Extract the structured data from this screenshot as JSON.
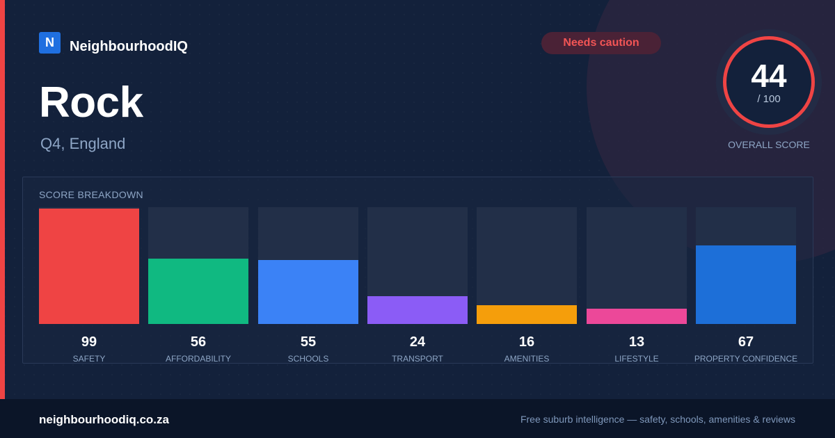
{
  "brand": {
    "logo_letter": "N",
    "name": "NeighbourhoodIQ",
    "color": "#1f6fe0"
  },
  "location": {
    "name": "Rock",
    "region": "Q4, England"
  },
  "status_badge": {
    "label": "Needs caution",
    "color": "#f25555"
  },
  "overall": {
    "score": "44",
    "max": "/ 100",
    "label": "OVERALL SCORE",
    "fraction": 0.44,
    "ring_color": "#ef4444"
  },
  "breakdown": {
    "title": "SCORE BREAKDOWN",
    "items": [
      {
        "label": "SAFETY",
        "value": "99",
        "score": 99,
        "color": "#ef4444"
      },
      {
        "label": "AFFORDABILITY",
        "value": "56",
        "score": 56,
        "color": "#10b981"
      },
      {
        "label": "SCHOOLS",
        "value": "55",
        "score": 55,
        "color": "#3b82f6"
      },
      {
        "label": "TRANSPORT",
        "value": "24",
        "score": 24,
        "color": "#8b5cf6"
      },
      {
        "label": "AMENITIES",
        "value": "16",
        "score": 16,
        "color": "#f59e0b"
      },
      {
        "label": "LIFESTYLE",
        "value": "13",
        "score": 13,
        "color": "#ec4899"
      },
      {
        "label": "PROPERTY CONFIDENCE",
        "value": "67",
        "score": 67,
        "color": "#1d6fd8"
      }
    ]
  },
  "footer": {
    "url": "neighbourhoodiq.co.za",
    "tagline": "Free suburb intelligence — safety, schools, amenities & reviews"
  }
}
